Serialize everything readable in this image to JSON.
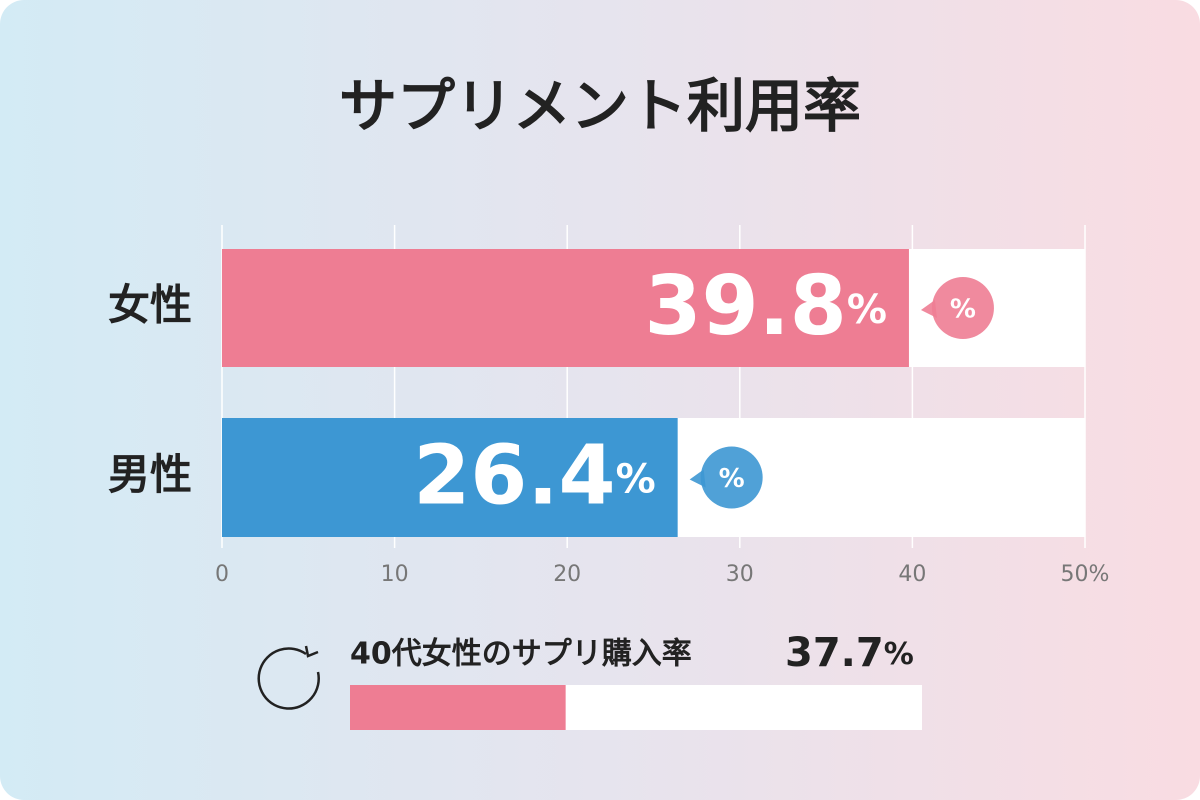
{
  "chart_data": {
    "type": "bar",
    "orientation": "horizontal",
    "title": "サプリメント利用率",
    "categories": [
      "女性",
      "男性"
    ],
    "values": [
      39.8,
      26.4
    ],
    "colors": [
      "#ee7d93",
      "#3d97d3"
    ],
    "value_unit": "%",
    "xlim": [
      0,
      50
    ],
    "xticks": [
      0,
      10,
      20,
      30,
      40,
      {
        "value": 50,
        "label": "50%"
      }
    ],
    "grid": true,
    "highlight": {
      "label": "40代女性のサプリ購入率",
      "value": 37.7,
      "range": [
        0,
        100
      ],
      "color": "#ee7d93"
    }
  }
}
